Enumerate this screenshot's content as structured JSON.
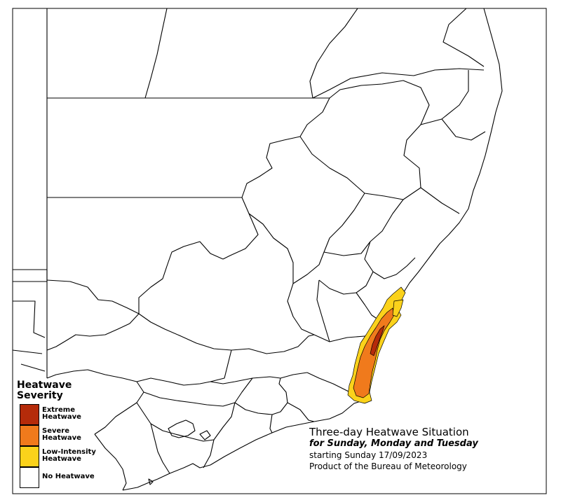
{
  "legend": {
    "title_line1": "Heatwave",
    "title_line2": "Severity",
    "items": [
      {
        "label_line1": "Extreme",
        "label_line2": "Heatwave",
        "color": "#b52b0a"
      },
      {
        "label_line1": "Severe",
        "label_line2": "Heatwave",
        "color": "#f07a1c"
      },
      {
        "label_line1": "Low-Intensity",
        "label_line2": "Heatwave",
        "color": "#fbd21b"
      },
      {
        "label_line1": "No Heatwave",
        "label_line2": "",
        "color": "#ffffff"
      }
    ]
  },
  "caption": {
    "title": "Three-day Heatwave Situation",
    "subtitle": "for Sunday, Monday and Tuesday",
    "start": "starting Sunday 17/09/2023",
    "credit": "Product of the Bureau of Meteorology"
  },
  "colors": {
    "boundary": "#000000",
    "background": "#ffffff"
  }
}
